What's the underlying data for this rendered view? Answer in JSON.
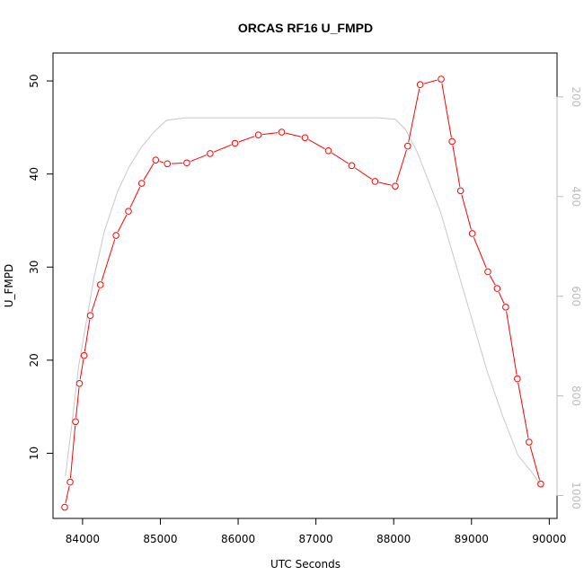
{
  "chart_data": {
    "type": "line",
    "title": "ORCAS RF16 U_FMPD",
    "xlabel": "UTC Seconds",
    "ylabel": "U_FMPD",
    "xlim": [
      83620,
      90100
    ],
    "ylim": [
      3,
      53
    ],
    "x_ticks": [
      84000,
      85000,
      86000,
      87000,
      88000,
      89000,
      90000
    ],
    "x_tick_labels": [
      "84000",
      "85000",
      "86000",
      "87000",
      "88000",
      "89000",
      "90000"
    ],
    "y_ticks": [
      10,
      20,
      30,
      40,
      50
    ],
    "y_tick_labels": [
      "10",
      "20",
      "30",
      "40",
      "50"
    ],
    "y2_range": [
      1046,
      112
    ],
    "y2_ticks": [
      200,
      400,
      600,
      800,
      1000
    ],
    "y2_tick_labels": [
      "200",
      "400",
      "600",
      "800",
      "1000"
    ],
    "y2_axis_color": "#bdbdbd",
    "grid": false,
    "series": [
      {
        "color": "#ff0000",
        "marker": "open-circle",
        "x": [
          83770,
          83840,
          83910,
          83960,
          84020,
          84100,
          84230,
          84430,
          84590,
          84760,
          84940,
          85090,
          85340,
          85640,
          85960,
          86260,
          86560,
          86860,
          87160,
          87460,
          87760,
          88020,
          88180,
          88340,
          88610,
          88750,
          88860,
          89010,
          89210,
          89330,
          89440,
          89590,
          89740,
          89890
        ],
        "y": [
          4.2,
          6.9,
          13.4,
          17.5,
          20.5,
          24.8,
          28.1,
          33.4,
          36.0,
          39.0,
          41.5,
          41.1,
          41.2,
          42.2,
          43.3,
          44.2,
          44.5,
          43.9,
          42.5,
          40.9,
          39.2,
          38.7,
          43.0,
          49.6,
          50.2,
          43.5,
          38.2,
          33.6,
          29.5,
          27.7,
          25.7,
          18.0,
          11.2,
          6.7
        ]
      },
      {
        "color": "#c8c8c8",
        "marker": "none",
        "axis": "right",
        "x": [
          83780,
          83860,
          83950,
          84050,
          84150,
          84280,
          84450,
          84600,
          84760,
          84940,
          85080,
          85330,
          85640,
          86000,
          86500,
          87000,
          87500,
          87800,
          88020,
          88150,
          88300,
          88450,
          88600,
          88750,
          88900,
          89050,
          89200,
          89400,
          89600,
          89760,
          89920
        ],
        "y": [
          960,
          860,
          740,
          650,
          560,
          470,
          390,
          340,
          300,
          267,
          247,
          242,
          242,
          242,
          242,
          242,
          242,
          242,
          245,
          265,
          310,
          370,
          430,
          510,
          590,
          670,
          750,
          840,
          920,
          950,
          985
        ]
      }
    ]
  }
}
